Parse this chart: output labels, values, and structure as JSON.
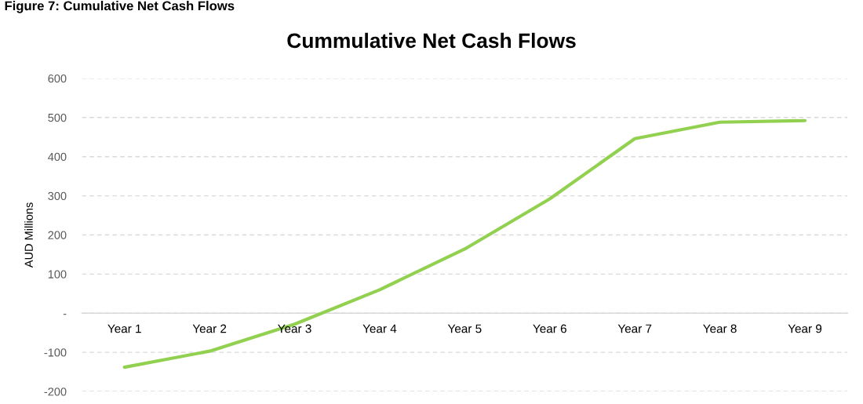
{
  "chart_data": {
    "type": "line",
    "title": "Cummulative Net Cash Flows",
    "ylabel": "AUD Millions",
    "annotations": [
      "Figure 7: Cumulative Net Cash Flows"
    ],
    "categories": [
      "Year 1",
      "Year 2",
      "Year 3",
      "Year 4",
      "Year 5",
      "Year 6",
      "Year 7",
      "Year 8",
      "Year 9"
    ],
    "series": [
      {
        "color": "#92d050",
        "values": [
          -138,
          -97,
          -28,
          60,
          164,
          292,
          446,
          488,
          492
        ]
      }
    ],
    "ylim": [
      -200,
      600
    ],
    "yticks": [
      -200,
      -100,
      {
        "value": 0,
        "label": "-"
      },
      100,
      200,
      300,
      400,
      500,
      600
    ],
    "grid": "y",
    "marker": "none",
    "line_style": "solid"
  }
}
